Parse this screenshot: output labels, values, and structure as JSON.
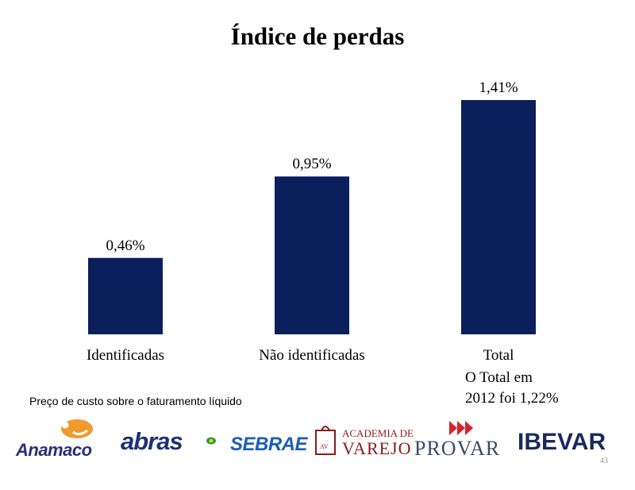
{
  "title": "Índice de perdas",
  "chart_data": {
    "type": "bar",
    "categories": [
      "Identificadas",
      "Não identificadas",
      "Total"
    ],
    "values": [
      0.46,
      0.95,
      1.41
    ],
    "data_labels": [
      "0,46%",
      "0,95%",
      "1,41%"
    ],
    "title": "Índice de perdas",
    "xlabel": "",
    "ylabel": "",
    "ylim": [
      0,
      1.41
    ],
    "grid": false,
    "bar_color": "#0b1f5c"
  },
  "note_lines": [
    "O Total em",
    "2012 foi 1,22%"
  ],
  "source": "Preço de custo sobre o faturamento líquido",
  "logos": {
    "anamaco": "Anamaco",
    "abras": "abras",
    "sebrae": "SEBRAE",
    "academia_line1": "ACADEMIA DE",
    "academia_line2": "VAREJO",
    "academia_mark": "AV",
    "provar": "PROVAR",
    "ibevar": "IBEVAR"
  },
  "page_number": "43"
}
